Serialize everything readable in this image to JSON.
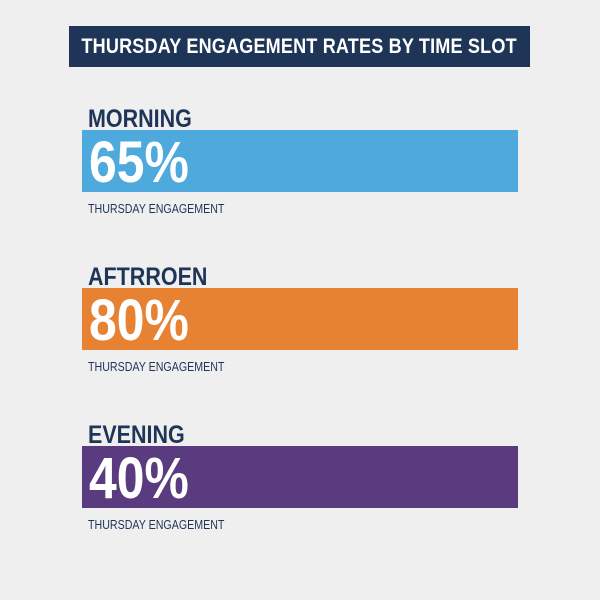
{
  "header": {
    "title": "THURSDAY ENGAGEMENT RATES BY TIME SLOT"
  },
  "colors": {
    "title_bg": "#1e3557",
    "label_text": "#1e3557",
    "background": "#efefef"
  },
  "chart_data": {
    "type": "bar",
    "title": "THURSDAY ENGAGEMENT RATES BY TIME SLOT",
    "categories": [
      "MORNING",
      "AFTRROEN",
      "EVENING"
    ],
    "values": [
      65,
      80,
      40
    ],
    "value_labels": [
      "65%",
      "80%",
      "40%"
    ],
    "captions": [
      "THURSDAY ENGAGEMENT",
      "THURSDAY ENGAGEMENT",
      "THURSDAY ENGAGEMENT"
    ],
    "colors": [
      "#4ea9dd",
      "#e88233",
      "#5a3b7f"
    ],
    "orientation": "horizontal",
    "unit": "%",
    "grid": false,
    "legend": "none"
  }
}
